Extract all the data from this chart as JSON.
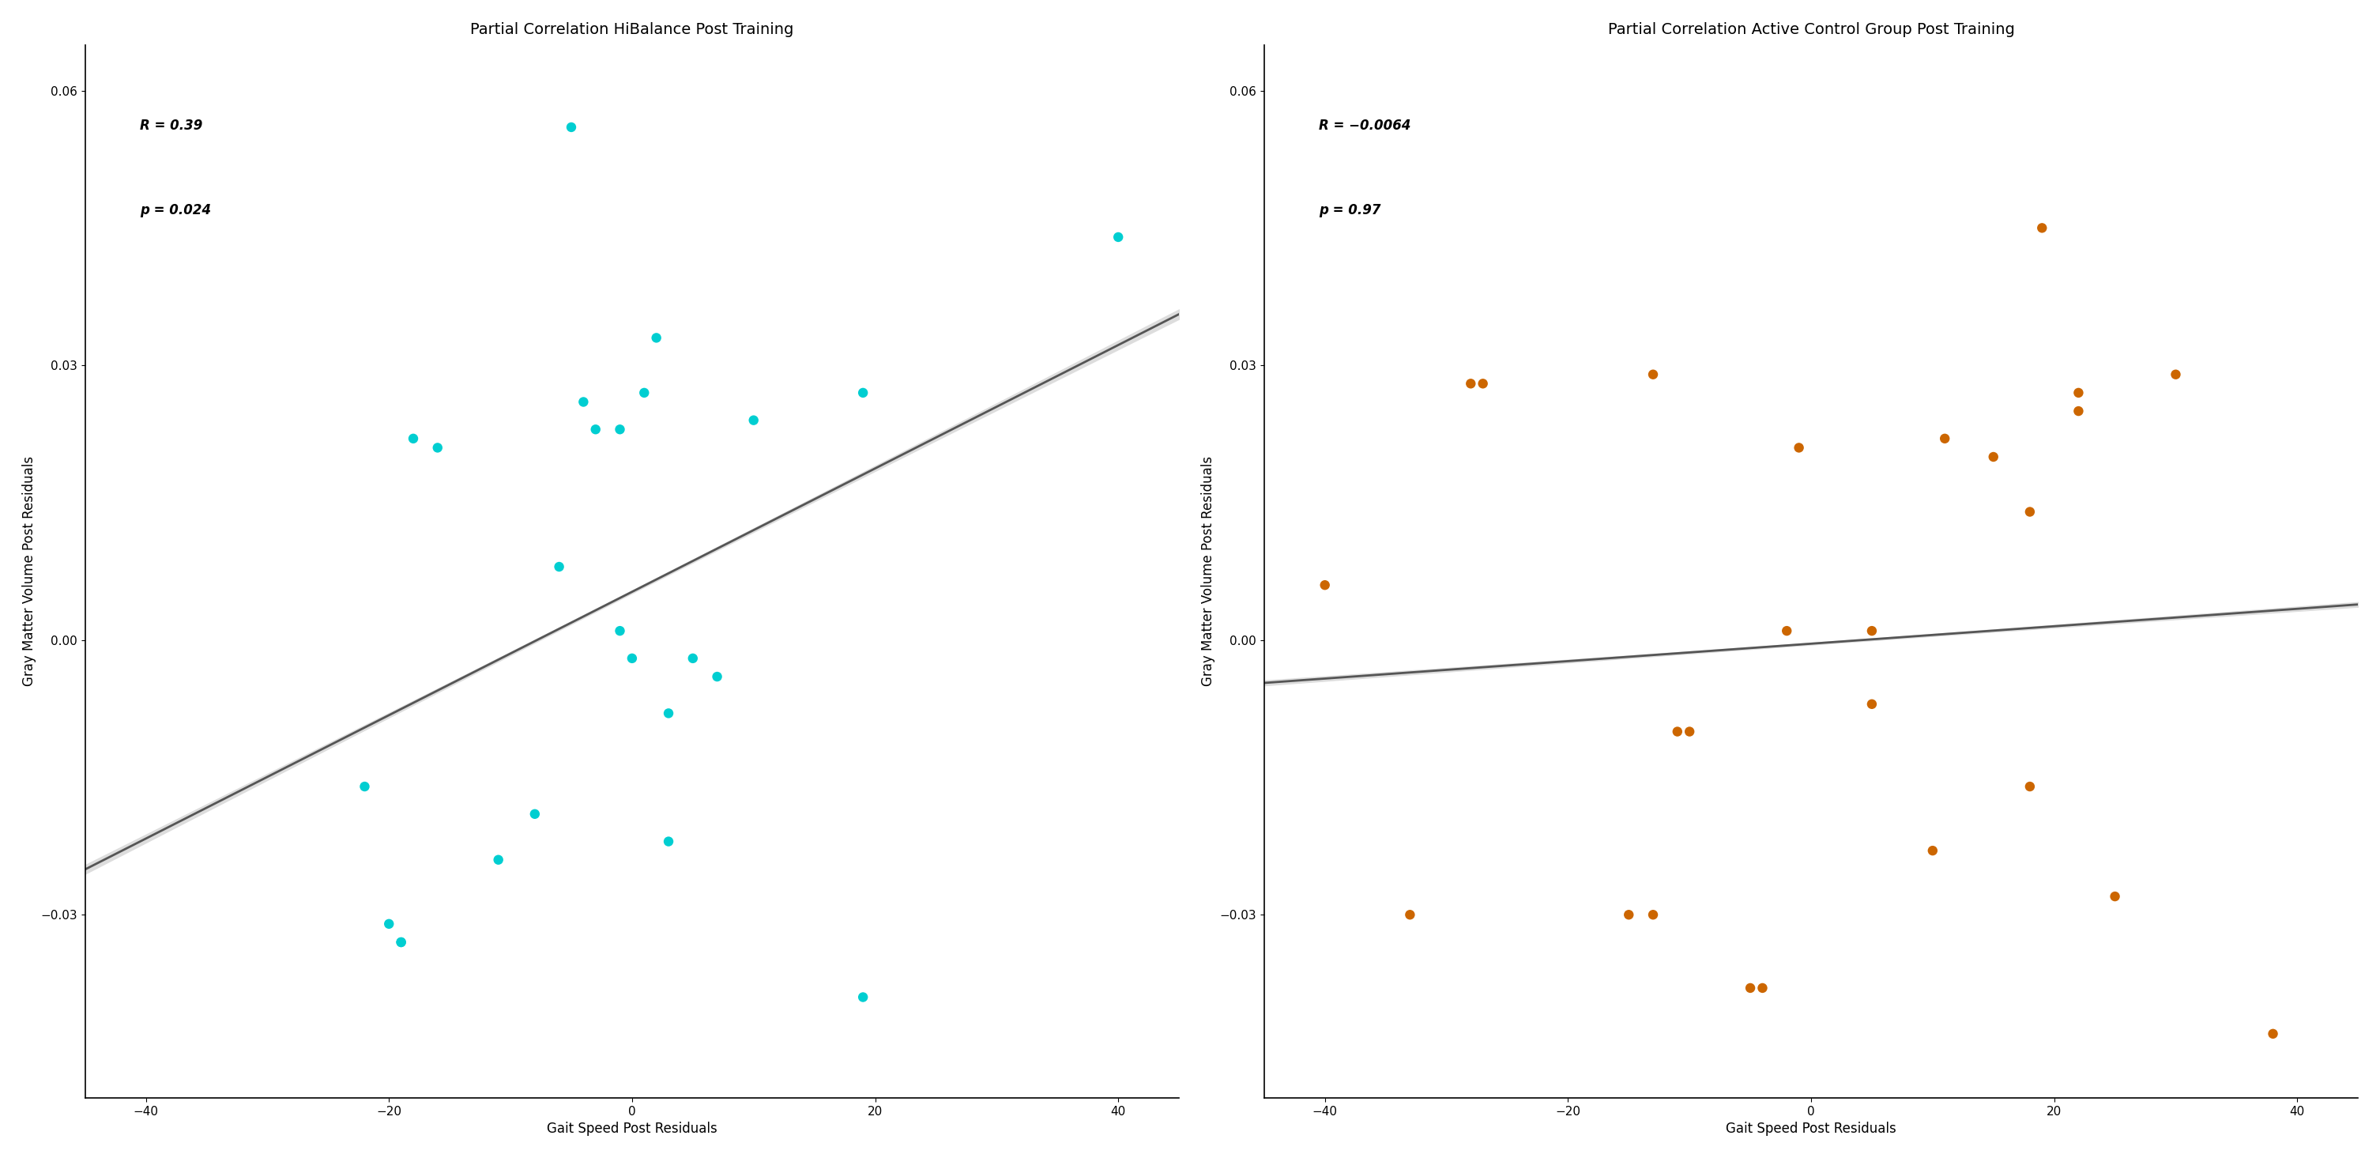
{
  "left_title": "Partial Correlation HiBalance Post Training",
  "right_title": "Partial Correlation Active Control Group Post Training",
  "xlabel": "Gait Speed Post Residuals",
  "ylabel": "Gray Matter Volume Post Residuals",
  "xlim": [
    -45,
    45
  ],
  "ylim": [
    -0.05,
    0.065
  ],
  "xticks": [
    -40,
    -20,
    0,
    20,
    40
  ],
  "yticks": [
    -0.03,
    0.0,
    0.03,
    0.06
  ],
  "left_color": "#00CED1",
  "right_color": "#CC6600",
  "line_color": "#555555",
  "ci_color": "#DDDDDD",
  "left_R": "R = 0.39",
  "left_p": "p = 0.024",
  "right_R": "R = −0.0064",
  "right_p": "p = 0.97",
  "left_x": [
    -22,
    -20,
    -19,
    -19,
    -18,
    -16,
    -11,
    -8,
    -6,
    -5,
    -4,
    -3,
    -1,
    -1,
    0,
    1,
    2,
    3,
    3,
    5,
    7,
    10,
    19,
    19,
    40
  ],
  "left_y": [
    -0.016,
    -0.031,
    -0.033,
    -0.033,
    0.022,
    0.021,
    -0.024,
    -0.019,
    0.008,
    0.056,
    0.026,
    0.023,
    0.001,
    0.023,
    -0.002,
    0.027,
    0.033,
    -0.008,
    -0.022,
    -0.002,
    -0.004,
    0.024,
    0.027,
    -0.039,
    0.044
  ],
  "right_x": [
    -40,
    -33,
    -28,
    -27,
    -15,
    -13,
    -13,
    -11,
    -10,
    -5,
    -4,
    -2,
    -1,
    5,
    5,
    10,
    11,
    15,
    18,
    18,
    19,
    22,
    22,
    25,
    30,
    38
  ],
  "right_y": [
    0.006,
    -0.03,
    0.028,
    0.028,
    -0.03,
    -0.03,
    0.029,
    -0.01,
    -0.01,
    -0.038,
    -0.038,
    0.001,
    0.021,
    -0.007,
    0.001,
    -0.023,
    0.022,
    0.02,
    0.014,
    -0.016,
    0.045,
    0.027,
    0.025,
    -0.028,
    0.029,
    -0.043
  ],
  "background_color": "#FFFFFF",
  "title_fontsize": 14,
  "label_fontsize": 12,
  "tick_fontsize": 11,
  "annotation_fontsize": 12
}
